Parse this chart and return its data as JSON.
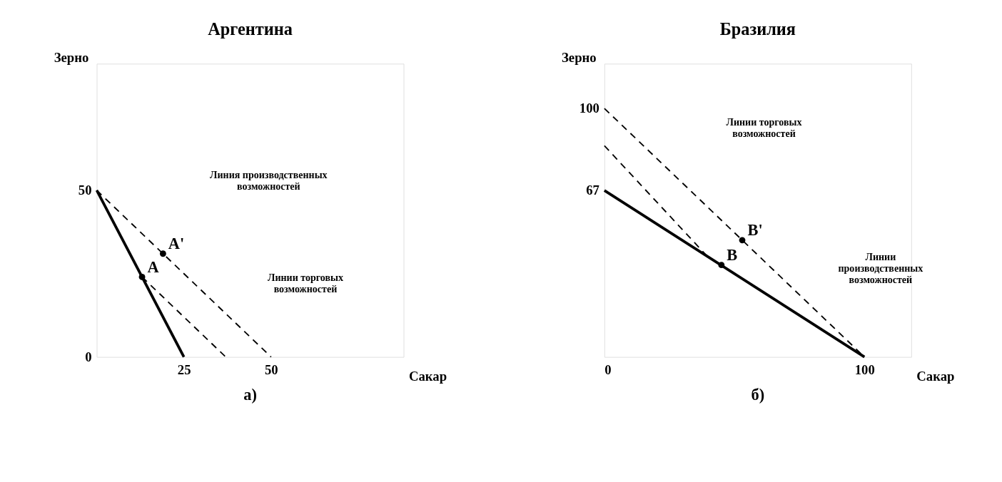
{
  "chart_data": [
    {
      "type": "line",
      "title": "Аргентина",
      "xlabel": "Сакар",
      "ylabel": "Зерно",
      "xlim": [
        0,
        88
      ],
      "ylim": [
        0,
        88
      ],
      "xticks": [
        25,
        50
      ],
      "yticks": [
        0,
        50
      ],
      "grid": false,
      "series": [
        {
          "color": "#000000",
          "line_style": "solid",
          "x": [
            0,
            25
          ],
          "values": [
            50,
            0
          ]
        },
        {
          "color": "#000000",
          "line_style": "dashed",
          "x": [
            0,
            50
          ],
          "values": [
            50,
            0
          ]
        },
        {
          "color": "#000000",
          "line_style": "dashed",
          "x": [
            13,
            37
          ],
          "values": [
            24,
            0
          ]
        },
        {
          "type": "scatter",
          "name": "A",
          "color": "#000000",
          "marker": "circle",
          "x": [
            13
          ],
          "values": [
            24
          ]
        },
        {
          "type": "scatter",
          "name": "A'",
          "color": "#000000",
          "marker": "circle",
          "x": [
            19
          ],
          "values": [
            31
          ]
        }
      ],
      "annotations": [
        "Линия производственных\nвозможностей",
        "Линии торговых\nвозможностей",
        "а)"
      ]
    },
    {
      "type": "line",
      "title": "Бразилия",
      "xlabel": "Сакар",
      "ylabel": "Зерно",
      "xlim": [
        0,
        118
      ],
      "ylim": [
        0,
        118
      ],
      "xticks": [
        0,
        100
      ],
      "yticks": [
        67,
        100
      ],
      "grid": false,
      "series": [
        {
          "color": "#000000",
          "line_style": "solid",
          "x": [
            0,
            100
          ],
          "values": [
            67,
            0
          ]
        },
        {
          "color": "#000000",
          "line_style": "dashed",
          "x": [
            0,
            100
          ],
          "values": [
            100,
            0
          ]
        },
        {
          "color": "#000000",
          "line_style": "dashed",
          "x": [
            0,
            40
          ],
          "values": [
            85,
            40
          ]
        },
        {
          "type": "scatter",
          "name": "B",
          "color": "#000000",
          "marker": "circle",
          "x": [
            45
          ],
          "values": [
            37
          ]
        },
        {
          "type": "scatter",
          "name": "B'",
          "color": "#000000",
          "marker": "circle",
          "x": [
            53
          ],
          "values": [
            47
          ]
        }
      ],
      "annotations": [
        "Линии торговых\nвозможностей",
        "Линии\nпроизводственных\nвозможностей",
        "б)"
      ]
    }
  ]
}
